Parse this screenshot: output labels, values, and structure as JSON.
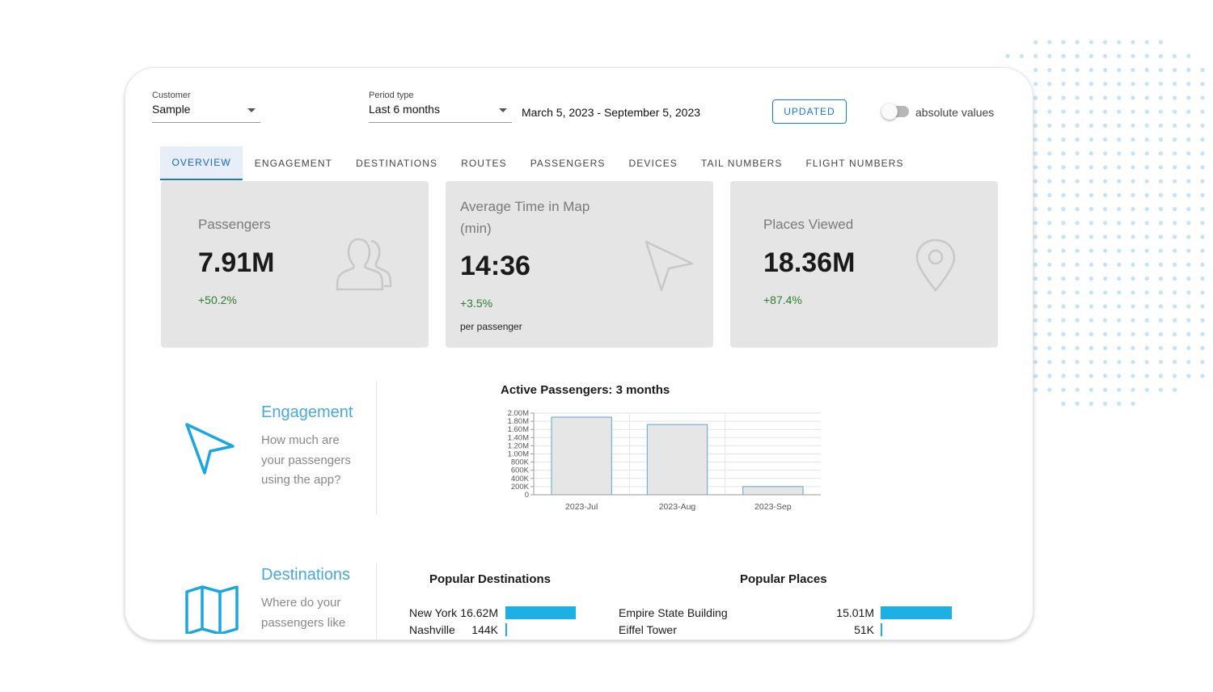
{
  "filters": {
    "customer": {
      "label": "Customer",
      "value": "Sample"
    },
    "period_type": {
      "label": "Period type",
      "value": "Last 6 months"
    },
    "date_range": "March 5, 2023 - September 5, 2023",
    "updated_button": "UPDATED",
    "absolute_values": {
      "label": "absolute values",
      "on": false
    }
  },
  "tabs": [
    {
      "label": "OVERVIEW",
      "active": true
    },
    {
      "label": "ENGAGEMENT"
    },
    {
      "label": "DESTINATIONS"
    },
    {
      "label": "ROUTES"
    },
    {
      "label": "PASSENGERS"
    },
    {
      "label": "DEVICES"
    },
    {
      "label": "TAIL NUMBERS"
    },
    {
      "label": "FLIGHT NUMBERS"
    }
  ],
  "stats": {
    "passengers": {
      "title": "Passengers",
      "value": "7.91M",
      "delta": "+50.2%",
      "icon": "users-icon"
    },
    "avg_time": {
      "title_line1": "Average Time in Map",
      "title_line2": "(min)",
      "value": "14:36",
      "delta": "+3.5%",
      "note": "per passenger",
      "icon": "navigation-arrow-icon"
    },
    "places": {
      "title": "Places Viewed",
      "value": "18.36M",
      "delta": "+87.4%",
      "icon": "map-pin-icon"
    }
  },
  "engagement": {
    "title": "Engagement",
    "desc_lines": [
      "How much are",
      "your passengers",
      "using the app?"
    ],
    "icon": "navigation-arrow-icon"
  },
  "destinations": {
    "title": "Destinations",
    "desc_lines": [
      "Where do your",
      "passengers like"
    ],
    "icon": "folded-map-icon"
  },
  "chart_data": {
    "type": "bar",
    "title": "Active Passengers: 3 months",
    "categories": [
      "2023-Jul",
      "2023-Aug",
      "2023-Sep"
    ],
    "values": [
      1900000,
      1720000,
      200000
    ],
    "yticks": [
      "0",
      "200K",
      "400K",
      "600K",
      "800K",
      "1.00M",
      "1.20M",
      "1.40M",
      "1.60M",
      "1.80M",
      "2.00M"
    ],
    "ylim": [
      0,
      2000000
    ],
    "grid": true,
    "bar_fill": "#e6e6e6",
    "bar_stroke": "#5aa6d6"
  },
  "popular_destinations": {
    "title": "Popular Destinations",
    "items": [
      {
        "name": "New York",
        "value": "16.62M",
        "fraction": 1.0
      },
      {
        "name": "Nashville",
        "value": "144K",
        "fraction": 0.01
      }
    ]
  },
  "popular_places": {
    "title": "Popular Places",
    "items": [
      {
        "name": "Empire State Building",
        "value": "15.01M",
        "fraction": 1.0
      },
      {
        "name": "Eiffel Tower",
        "value": "51K",
        "fraction": 0.005
      }
    ]
  },
  "colors": {
    "accent": "#1976d2",
    "positive": "#2e7d32",
    "bar": "#1fb0e3",
    "dots": "#c4e4f5",
    "section_title": "#4aa8d8"
  }
}
